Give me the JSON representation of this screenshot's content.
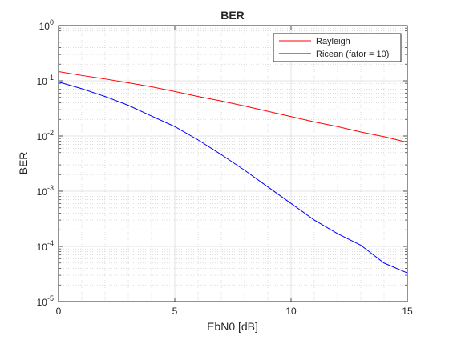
{
  "chart_data": {
    "type": "line",
    "title": "BER",
    "xlabel": "EbN0 [dB]",
    "ylabel": "BER",
    "xlim": [
      0,
      15
    ],
    "ylim": [
      1e-05,
      1
    ],
    "yscale": "log",
    "grid": true,
    "minor_grid": true,
    "legend_position": "top-right",
    "x_ticks": [
      "0",
      "5",
      "10",
      "15"
    ],
    "y_ticks": [
      {
        "base": "10",
        "exp": "-5"
      },
      {
        "base": "10",
        "exp": "-4"
      },
      {
        "base": "10",
        "exp": "-3"
      },
      {
        "base": "10",
        "exp": "-2"
      },
      {
        "base": "10",
        "exp": "-1"
      },
      {
        "base": "10",
        "exp": "0"
      }
    ],
    "x": [
      0,
      1,
      2,
      3,
      4,
      5,
      6,
      7,
      8,
      9,
      10,
      11,
      12,
      13,
      14,
      15
    ],
    "series": [
      {
        "name": "Rayleigh",
        "color": "#ff0000",
        "values": [
          0.147,
          0.125,
          0.108,
          0.092,
          0.078,
          0.064,
          0.052,
          0.043,
          0.035,
          0.028,
          0.0225,
          0.018,
          0.0148,
          0.0118,
          0.0097,
          0.0077
        ]
      },
      {
        "name": "Ricean (fator = 10)",
        "color": "#0000ff",
        "values": [
          0.095,
          0.072,
          0.052,
          0.036,
          0.023,
          0.0148,
          0.0085,
          0.0046,
          0.0024,
          0.0012,
          0.0006,
          0.0003,
          0.00017,
          0.000105,
          5e-05,
          3.3e-05
        ]
      }
    ]
  }
}
